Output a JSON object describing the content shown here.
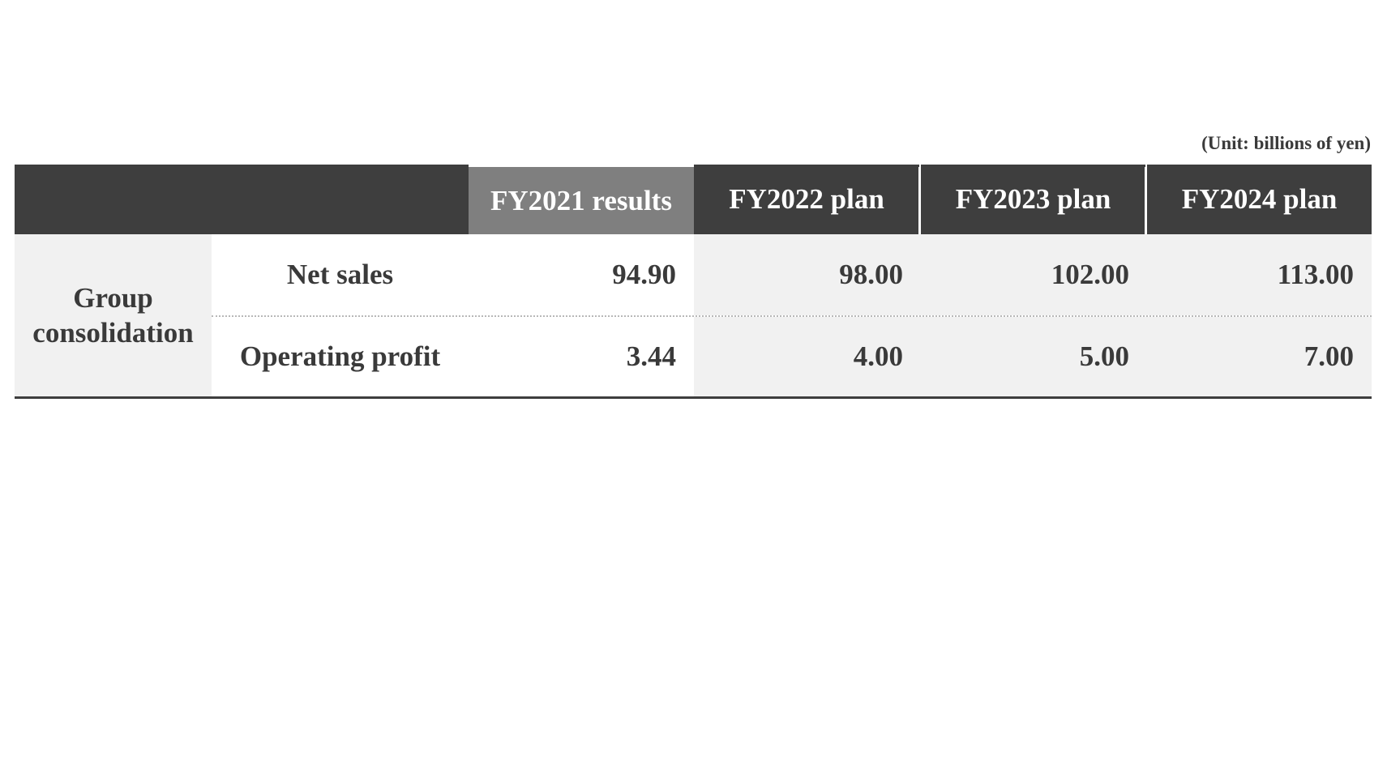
{
  "unit_note": "(Unit: billions of yen)",
  "table": {
    "columns": [
      "FY2021 results",
      "FY2022 plan",
      "FY2023 plan",
      "FY2024 plan"
    ],
    "group_label": "Group consolidation",
    "rows": [
      {
        "label": "Net sales",
        "values": [
          "94.90",
          "98.00",
          "102.00",
          "113.00"
        ]
      },
      {
        "label": "Operating profit",
        "values": [
          "3.44",
          "4.00",
          "5.00",
          "7.00"
        ]
      }
    ]
  },
  "colors": {
    "header_dark": "#3e3e3e",
    "header_results": "#7f7f7f",
    "plan_cell_bg": "#f1f1f1",
    "text": "#3a3a3a"
  }
}
